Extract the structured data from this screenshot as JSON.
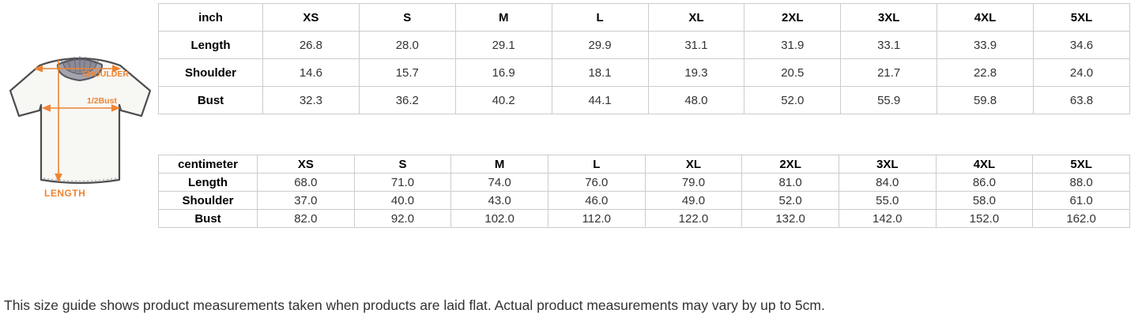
{
  "diagram": {
    "accent_color": "#ef8432",
    "labels": {
      "shoulder": "SHOULDER",
      "half_bust": "1/2Bust",
      "length": "LENGTH"
    }
  },
  "tables": [
    {
      "unit_header": "inch",
      "sizes": [
        "XS",
        "S",
        "M",
        "L",
        "XL",
        "2XL",
        "3XL",
        "4XL",
        "5XL"
      ],
      "rows": [
        {
          "label": "Length",
          "values": [
            "26.8",
            "28.0",
            "29.1",
            "29.9",
            "31.1",
            "31.9",
            "33.1",
            "33.9",
            "34.6"
          ]
        },
        {
          "label": "Shoulder",
          "values": [
            "14.6",
            "15.7",
            "16.9",
            "18.1",
            "19.3",
            "20.5",
            "21.7",
            "22.8",
            "24.0"
          ]
        },
        {
          "label": "Bust",
          "values": [
            "32.3",
            "36.2",
            "40.2",
            "44.1",
            "48.0",
            "52.0",
            "55.9",
            "59.8",
            "63.8"
          ]
        }
      ]
    },
    {
      "unit_header": "centimeter",
      "sizes": [
        "XS",
        "S",
        "M",
        "L",
        "XL",
        "2XL",
        "3XL",
        "4XL",
        "5XL"
      ],
      "rows": [
        {
          "label": "Length",
          "values": [
            "68.0",
            "71.0",
            "74.0",
            "76.0",
            "79.0",
            "81.0",
            "84.0",
            "86.0",
            "88.0"
          ]
        },
        {
          "label": "Shoulder",
          "values": [
            "37.0",
            "40.0",
            "43.0",
            "46.0",
            "49.0",
            "52.0",
            "55.0",
            "58.0",
            "61.0"
          ]
        },
        {
          "label": "Bust",
          "values": [
            "82.0",
            "92.0",
            "102.0",
            "112.0",
            "122.0",
            "132.0",
            "142.0",
            "152.0",
            "162.0"
          ]
        }
      ]
    }
  ],
  "footer_note": "This size guide shows product measurements taken when products are laid flat. Actual product measurements may vary by up to 5cm."
}
